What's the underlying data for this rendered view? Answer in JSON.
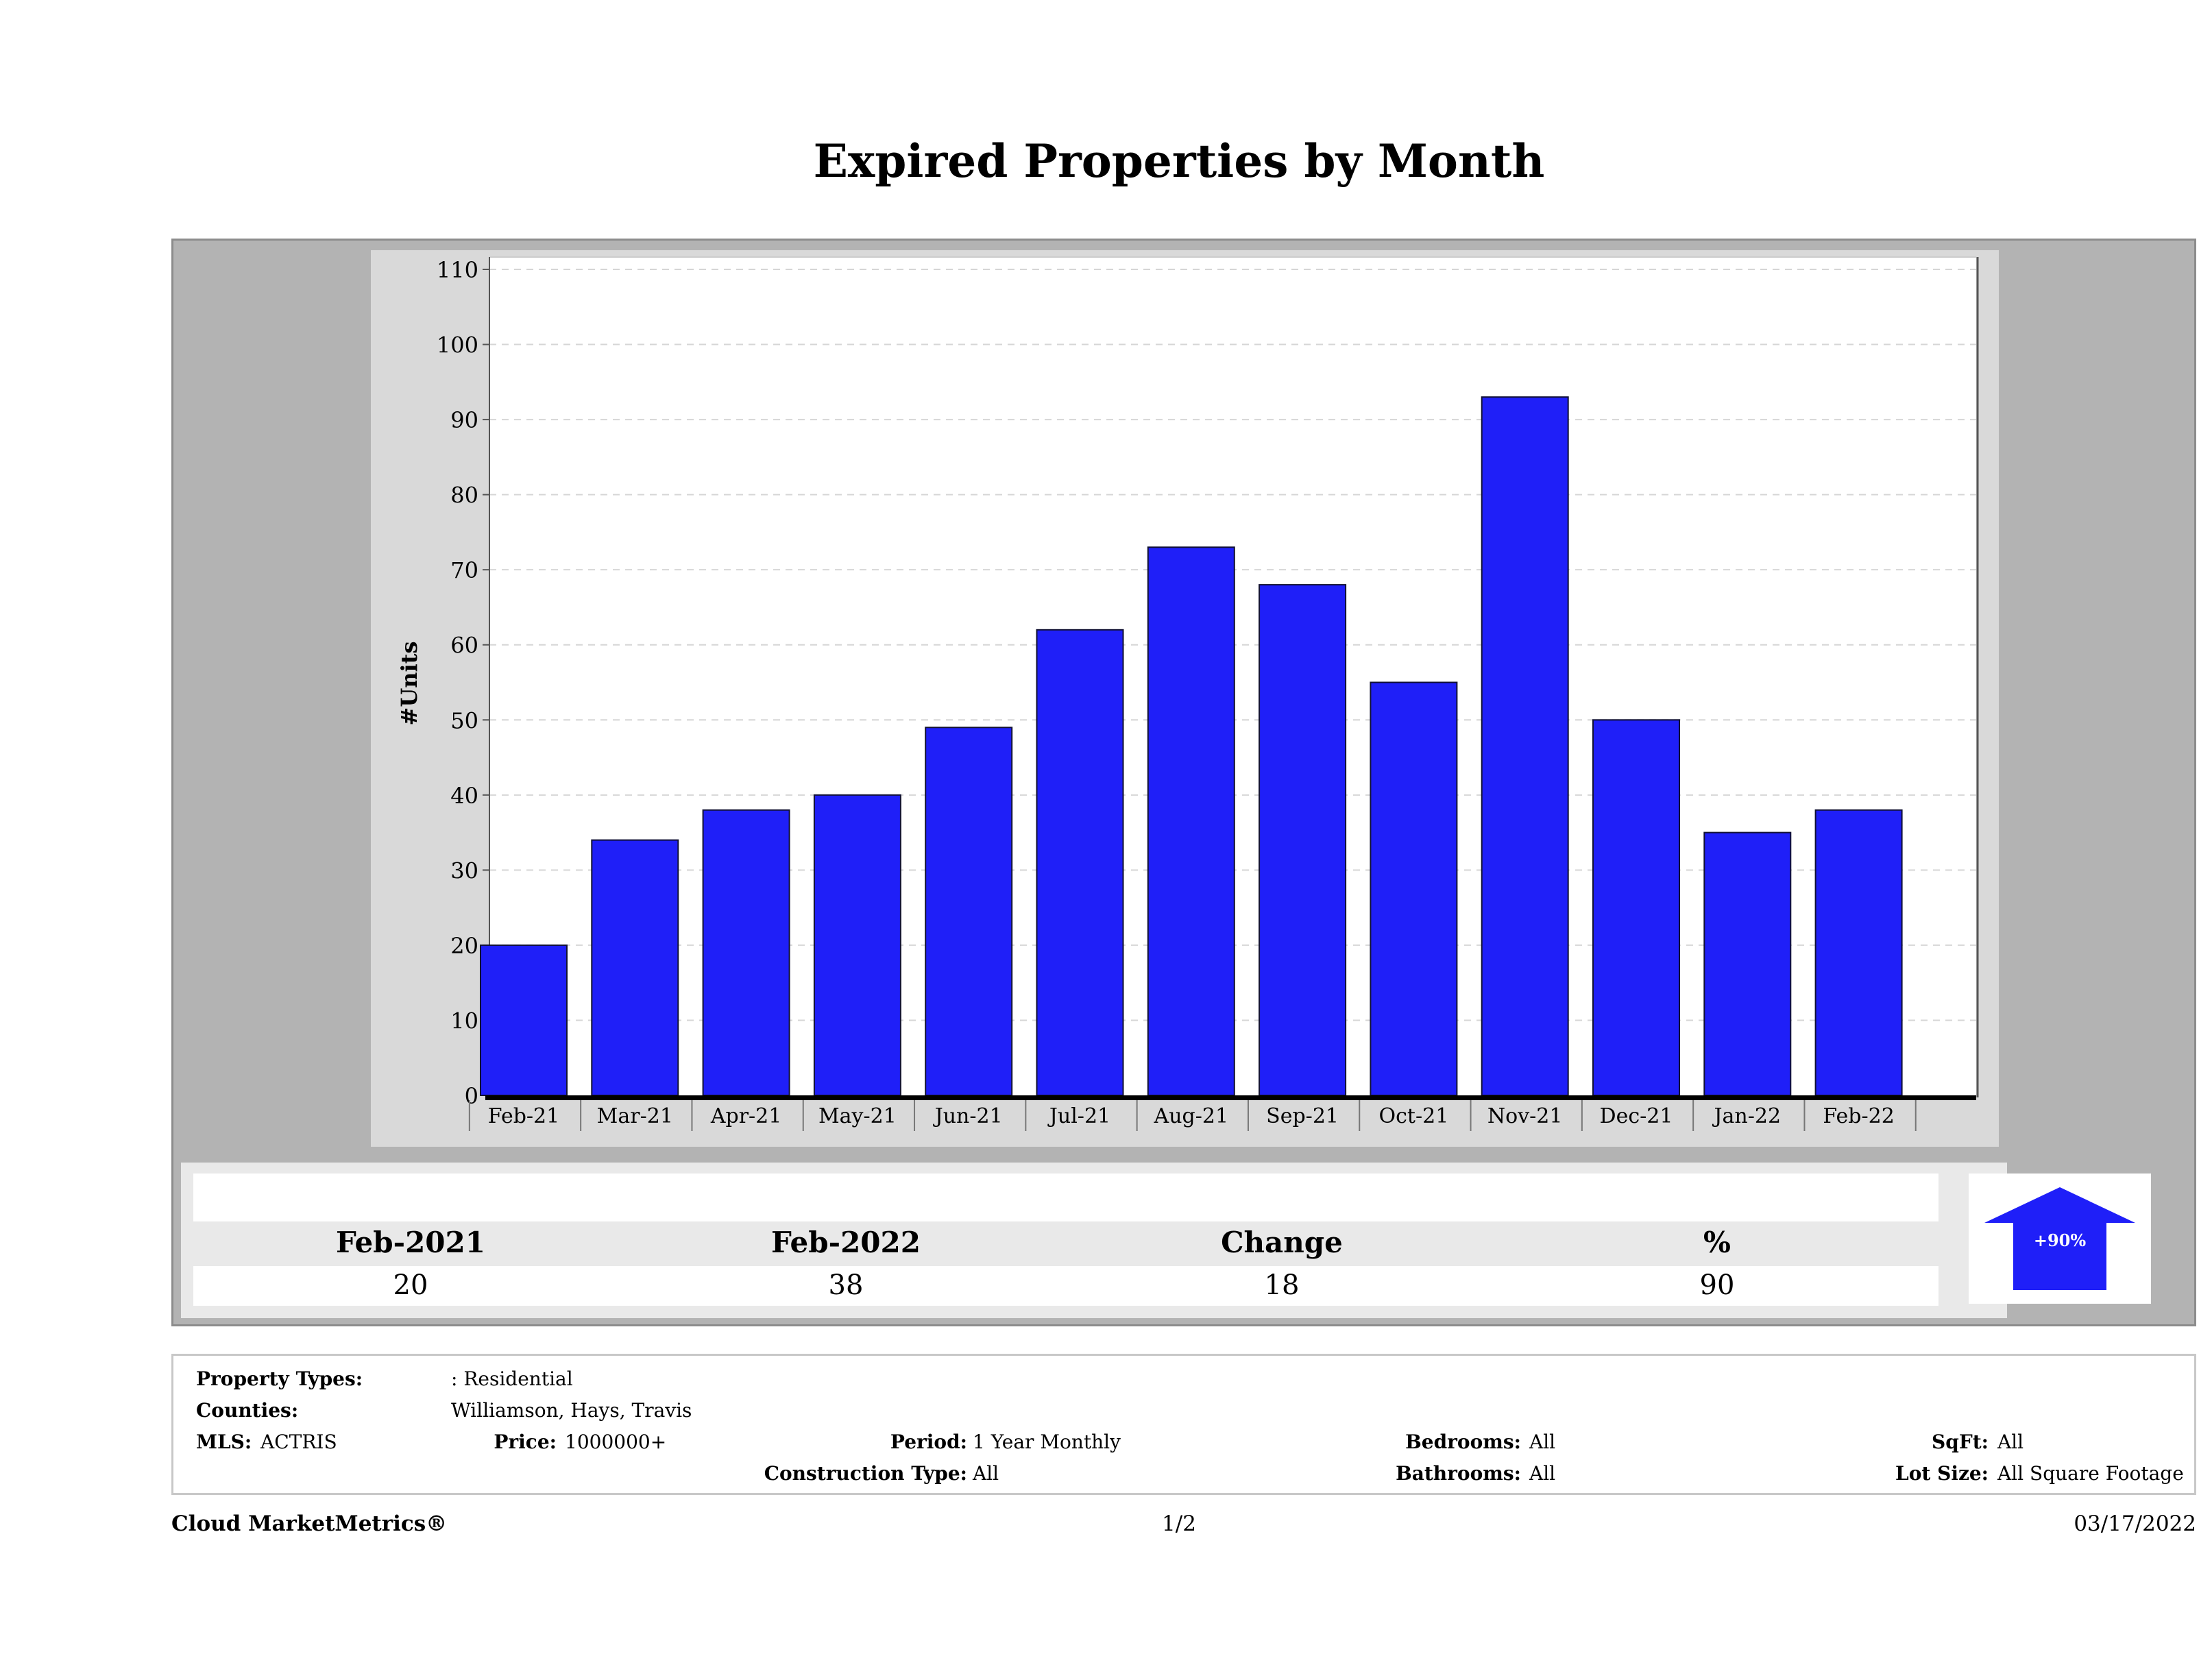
{
  "chart_data": {
    "type": "bar",
    "title": "Expired Properties by Month",
    "ylabel": "#Units",
    "xlabel": "",
    "categories": [
      "Feb-21",
      "Mar-21",
      "Apr-21",
      "May-21",
      "Jun-21",
      "Jul-21",
      "Aug-21",
      "Sep-21",
      "Oct-21",
      "Nov-21",
      "Dec-21",
      "Jan-22",
      "Feb-22"
    ],
    "values": [
      20,
      34,
      38,
      40,
      49,
      62,
      73,
      68,
      55,
      93,
      50,
      35,
      38
    ],
    "ylim": [
      0,
      110
    ],
    "yticks": [
      0,
      10,
      20,
      30,
      40,
      50,
      60,
      70,
      80,
      90,
      100,
      110
    ],
    "grid": true,
    "bar_color": "#1f1ff8"
  },
  "summary": {
    "headers": [
      "Feb-2021",
      "Feb-2022",
      "Change",
      "%"
    ],
    "values": [
      "20",
      "38",
      "18",
      "90"
    ],
    "badge": "+90%",
    "badge_color": "#1f1ff8"
  },
  "info": {
    "property_types_label": "Property Types:",
    "property_types_value": ": Residential",
    "counties_label": "Counties:",
    "counties_value": "Williamson, Hays, Travis",
    "mls_label": "MLS:",
    "mls_value": "ACTRIS",
    "price_label": "Price:",
    "price_value": "1000000+",
    "period_label": "Period:",
    "period_value": "1 Year Monthly",
    "construction_label": "Construction Type:",
    "construction_value": "All",
    "bedrooms_label": "Bedrooms:",
    "bedrooms_value": "All",
    "bathrooms_label": "Bathrooms:",
    "bathrooms_value": "All",
    "sqft_label": "SqFt:",
    "sqft_value": "All",
    "lotsize_label": "Lot Size:",
    "lotsize_value": "All Square Footage"
  },
  "footer": {
    "brand": "Cloud MarketMetrics®",
    "page": "1/2",
    "date": "03/17/2022"
  }
}
